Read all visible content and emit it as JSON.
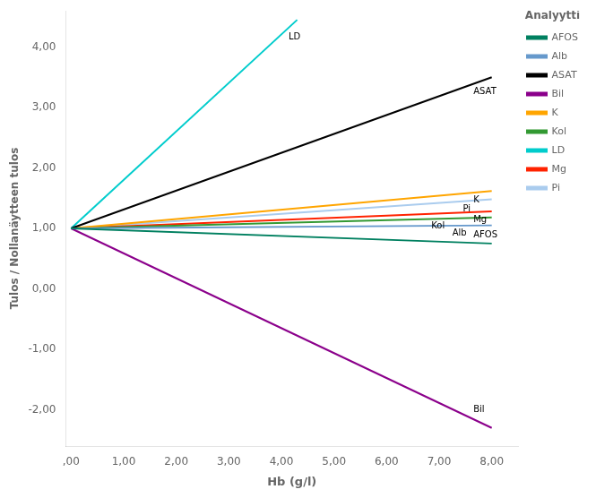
{
  "chart_data": {
    "type": "line",
    "xlabel": "Hb (g/l)",
    "ylabel": "Tulos / Nollanäytteen tulos",
    "legend_title": "Analyytti",
    "xlim": [
      -0.1,
      8.5
    ],
    "ylim": [
      -2.6,
      4.6
    ],
    "xticks": [
      {
        "value": 0,
        "label": ",00"
      },
      {
        "value": 1,
        "label": "1,00"
      },
      {
        "value": 2,
        "label": "2,00"
      },
      {
        "value": 3,
        "label": "3,00"
      },
      {
        "value": 4,
        "label": "4,00"
      },
      {
        "value": 5,
        "label": "5,00"
      },
      {
        "value": 6,
        "label": "6,00"
      },
      {
        "value": 7,
        "label": "7,00"
      },
      {
        "value": 8,
        "label": "8,00"
      }
    ],
    "yticks": [
      {
        "value": -2.0,
        "label": "-2,00"
      },
      {
        "value": -1.0,
        "label": "-1,00"
      },
      {
        "value": 0.0,
        "label": "0,00"
      },
      {
        "value": 1.0,
        "label": "1,00"
      },
      {
        "value": 2.0,
        "label": "2,00"
      },
      {
        "value": 3.0,
        "label": "3,00"
      },
      {
        "value": 4.0,
        "label": "4,00"
      }
    ],
    "grid": false,
    "legend": "right",
    "series": [
      {
        "name": "AFOS",
        "color": "#008060",
        "x": [
          0,
          8
        ],
        "values": [
          1,
          0.75
        ]
      },
      {
        "name": "Alb",
        "color": "#6699cc",
        "x": [
          0,
          8
        ],
        "values": [
          1,
          1.05
        ]
      },
      {
        "name": "ASAT",
        "color": "#000000",
        "x": [
          0,
          8
        ],
        "values": [
          1,
          3.5
        ]
      },
      {
        "name": "Bil",
        "color": "#8b008b",
        "x": [
          0,
          8
        ],
        "values": [
          1,
          -2.3
        ]
      },
      {
        "name": "K",
        "color": "#ffa500",
        "x": [
          0,
          8
        ],
        "values": [
          1,
          1.62
        ]
      },
      {
        "name": "Kol",
        "color": "#339933",
        "x": [
          0,
          8
        ],
        "values": [
          1,
          1.18
        ]
      },
      {
        "name": "LD",
        "color": "#00cccc",
        "x": [
          0,
          4.3
        ],
        "values": [
          1,
          4.45
        ]
      },
      {
        "name": "Mg",
        "color": "#ff2200",
        "x": [
          0,
          8
        ],
        "values": [
          1,
          1.28
        ]
      },
      {
        "name": "Pi",
        "color": "#aaccee",
        "x": [
          0,
          8
        ],
        "values": [
          1,
          1.48
        ]
      }
    ],
    "annotations": [
      "AFOS",
      "Alb",
      "ASAT",
      "Bil",
      "K",
      "Kol",
      "LD",
      "Mg",
      "Pi"
    ]
  }
}
